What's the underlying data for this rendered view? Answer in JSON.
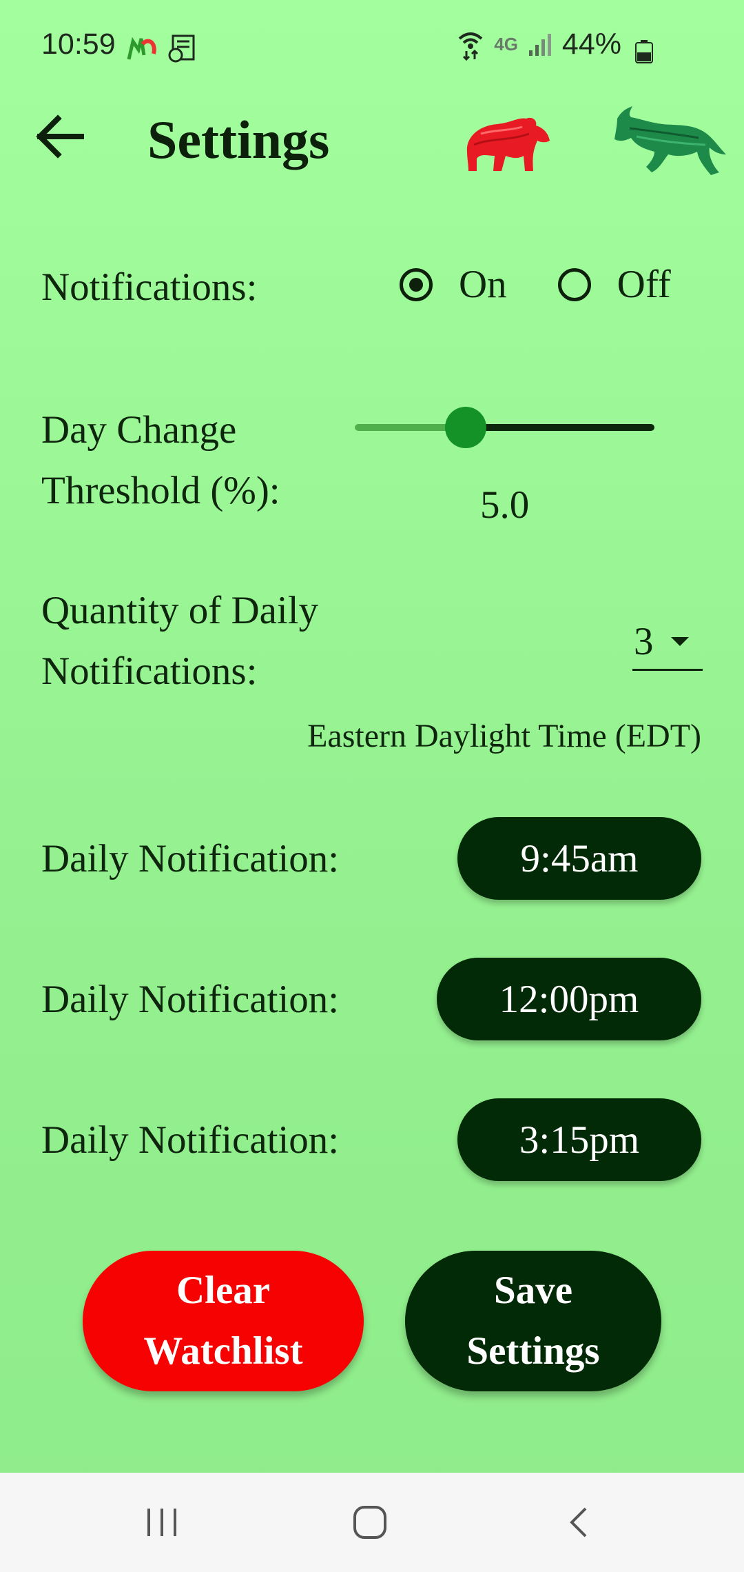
{
  "status_bar": {
    "time": "10:59",
    "network": "4G",
    "battery": "44%"
  },
  "header": {
    "title": "Settings",
    "back_icon": "arrow-left-icon",
    "logos": [
      "bear-logo",
      "bull-logo"
    ]
  },
  "settings": {
    "notifications": {
      "label": "Notifications:",
      "options": [
        "On",
        "Off"
      ],
      "selected": "On"
    },
    "day_change": {
      "label": "Day Change Threshold (%):",
      "value_text": "5.0",
      "slider_fraction": 0.37
    },
    "quantity": {
      "label": "Quantity of Daily Notifications:",
      "selected": "3"
    },
    "timezone_label": "Eastern Daylight Time (EDT)",
    "daily_notifications": [
      {
        "label": "Daily Notification:",
        "time": "9:45am"
      },
      {
        "label": "Daily Notification:",
        "time": "12:00pm"
      },
      {
        "label": "Daily Notification:",
        "time": "3:15pm"
      }
    ]
  },
  "actions": {
    "clear_line1": "Clear",
    "clear_line2": "Watchlist",
    "save_line1": "Save",
    "save_line2": "Settings"
  },
  "colors": {
    "background": "#a3ff9d",
    "dark_green": "#032a07",
    "danger_red": "#f70202",
    "slider_thumb": "#159227"
  },
  "nav_bar": [
    "recent-apps-icon",
    "home-icon",
    "back-nav-icon"
  ]
}
